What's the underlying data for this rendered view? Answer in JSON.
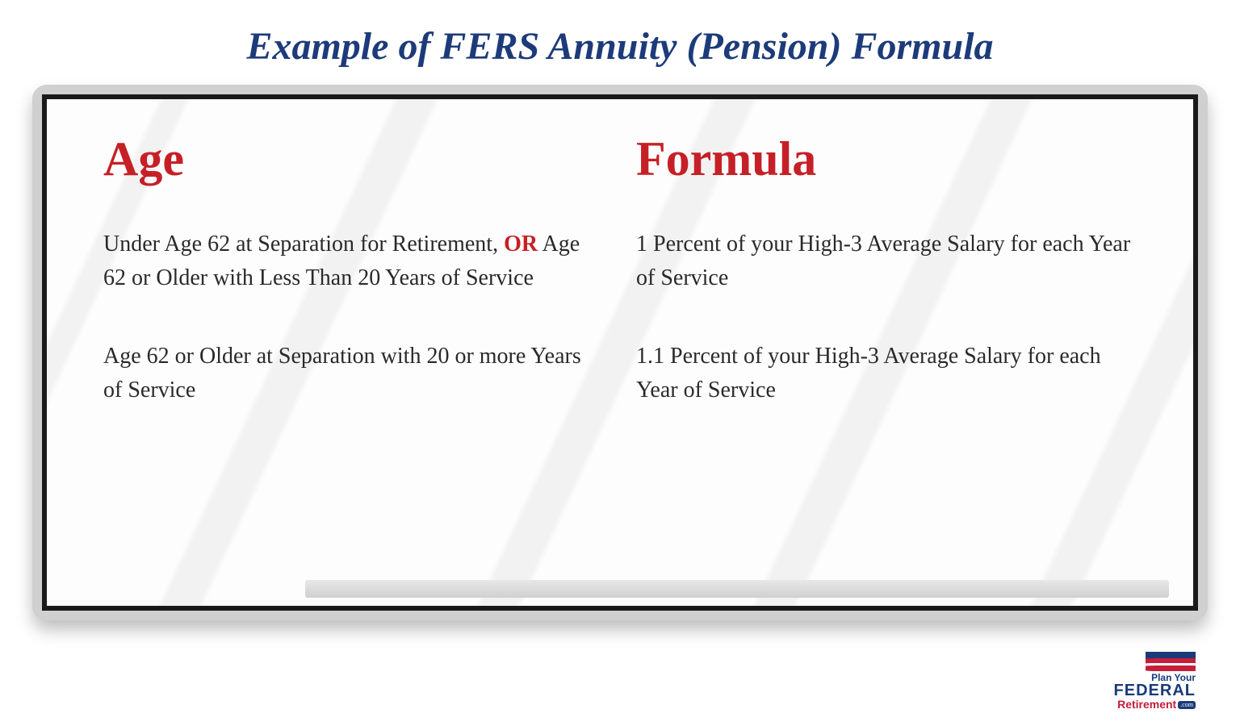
{
  "title": "Example of FERS Annuity (Pension) Formula",
  "title_color": "#1d3b7a",
  "heading_color": "#c62027",
  "body_text_color": "#2a2a2a",
  "or_color": "#c62027",
  "background_color": "#ffffff",
  "whiteboard": {
    "frame_color": "#d0d0d0",
    "inner_border_color": "#1a1a1a",
    "surface_base": "#fdfdfd",
    "surface_streak": "#f2f2f2"
  },
  "columns": {
    "left": {
      "heading": "Age",
      "rows": [
        {
          "pre": "Under Age 62 at Separation for Retirement, ",
          "emph": "OR",
          "post": " Age 62 or Older with Less Than 20 Years of Service"
        },
        {
          "pre": "Age 62 or Older at Separation with 20 or more Years of Service",
          "emph": "",
          "post": ""
        }
      ]
    },
    "right": {
      "heading": "Formula",
      "rows": [
        {
          "text": "1 Percent of your High-3 Average Salary for each Year of Service"
        },
        {
          "text": "1.1 Percent of your High-3 Average Salary for each Year of Service"
        }
      ]
    }
  },
  "logo": {
    "line1": "Plan Your",
    "line2": "FEDERAL",
    "line3": "Retirement",
    "suffix": ".com",
    "blue": "#1a3a7a",
    "red": "#c41e3a"
  }
}
